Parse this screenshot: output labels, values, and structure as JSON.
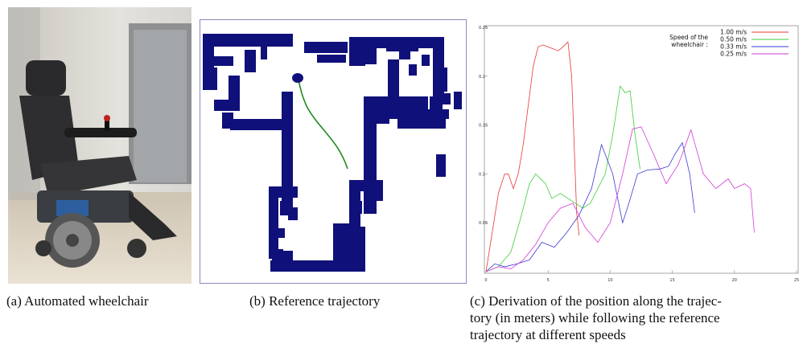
{
  "figure": {
    "panel_a": {
      "caption": "(a) Automated wheelchair"
    },
    "panel_b": {
      "caption": "(b) Reference trajectory"
    },
    "panel_c": {
      "caption_line1": "(c) Derivation of the position along the trajec-",
      "caption_line2": "tory (in meters) while following the reference",
      "caption_line3": "trajectory at different speeds"
    }
  },
  "chart_data": {
    "type": "line",
    "title": "",
    "xlabel": "",
    "ylabel": "",
    "xlim": [
      0,
      25
    ],
    "ylim": [
      0,
      0.25
    ],
    "x_ticks": [
      0,
      5,
      10,
      15,
      20,
      25
    ],
    "y_ticks": [
      0.05,
      0.1,
      0.15,
      0.2,
      0.25
    ],
    "x_tick_labels": [
      "0",
      "5",
      "10",
      "15",
      "20",
      "25"
    ],
    "y_tick_labels": [
      "0.05",
      "0.1",
      "0.15",
      "0.2",
      "0.25"
    ],
    "grid": false,
    "legend": {
      "title_line1": "Speed of the",
      "title_line2": "wheelchair :",
      "placement": "top-right"
    },
    "series": [
      {
        "name": "1.00 m/s",
        "color": "#e8382f",
        "x": [
          0,
          0.5,
          1.0,
          1.5,
          1.8,
          2.2,
          2.6,
          3.0,
          3.4,
          3.8,
          4.2,
          4.6,
          5.0,
          5.4,
          5.8,
          6.2,
          6.6,
          6.9,
          7.1,
          7.3,
          7.5
        ],
        "y": [
          0.0,
          0.04,
          0.08,
          0.1,
          0.1,
          0.085,
          0.1,
          0.13,
          0.17,
          0.21,
          0.23,
          0.232,
          0.23,
          0.228,
          0.226,
          0.23,
          0.235,
          0.2,
          0.13,
          0.06,
          0.037
        ]
      },
      {
        "name": "0.50 m/s",
        "color": "#3bcc3b",
        "x": [
          0,
          1.0,
          2.0,
          2.8,
          3.5,
          4.0,
          4.8,
          5.3,
          6.0,
          6.6,
          7.2,
          7.8,
          8.4,
          9.0,
          9.6,
          10.2,
          10.8,
          11.2,
          11.6,
          12.0,
          12.4
        ],
        "y": [
          0.0,
          0.005,
          0.02,
          0.055,
          0.09,
          0.1,
          0.09,
          0.075,
          0.08,
          0.075,
          0.07,
          0.065,
          0.07,
          0.085,
          0.1,
          0.14,
          0.19,
          0.183,
          0.185,
          0.14,
          0.105
        ]
      },
      {
        "name": "0.33 m/s",
        "color": "#3a3ad8",
        "x": [
          0,
          0.7,
          1.5,
          2.5,
          3.5,
          4.5,
          5.5,
          6.5,
          7.5,
          8.5,
          9.3,
          10.2,
          11.0,
          11.5,
          12.2,
          13.0,
          14.0,
          14.7,
          15.2,
          15.8,
          16.4,
          16.8
        ],
        "y": [
          0.0,
          0.008,
          0.005,
          0.008,
          0.012,
          0.03,
          0.025,
          0.04,
          0.058,
          0.085,
          0.13,
          0.1,
          0.05,
          0.07,
          0.1,
          0.104,
          0.105,
          0.108,
          0.12,
          0.132,
          0.1,
          0.06
        ]
      },
      {
        "name": "0.25 m/s",
        "color": "#d33bd3",
        "x": [
          0,
          1.0,
          2.0,
          3.0,
          4.0,
          5.0,
          6.0,
          7.0,
          8.0,
          9.0,
          10.0,
          11.0,
          11.8,
          12.5,
          13.5,
          14.5,
          15.5,
          16.5,
          17.5,
          18.5,
          19.5,
          20.0,
          20.8,
          21.3,
          21.6
        ],
        "y": [
          0.0,
          0.005,
          0.003,
          0.012,
          0.028,
          0.05,
          0.065,
          0.07,
          0.045,
          0.03,
          0.05,
          0.1,
          0.146,
          0.148,
          0.12,
          0.09,
          0.11,
          0.145,
          0.1,
          0.085,
          0.095,
          0.085,
          0.09,
          0.085,
          0.04
        ]
      }
    ]
  }
}
